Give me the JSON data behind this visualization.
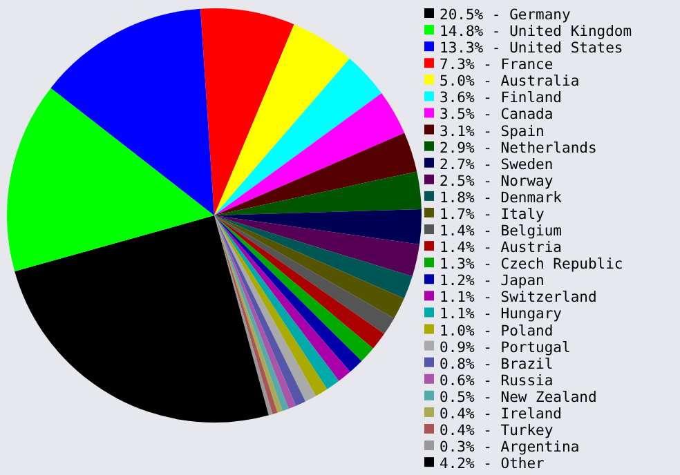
{
  "chart_data": {
    "type": "pie",
    "legend": "right",
    "categories": [
      "Germany",
      "United Kingdom",
      "United States",
      "France",
      "Australia",
      "Finland",
      "Canada",
      "Spain",
      "Netherlands",
      "Sweden",
      "Norway",
      "Denmark",
      "Italy",
      "Belgium",
      "Austria",
      "Czech Republic",
      "Japan",
      "Switzerland",
      "Hungary",
      "Poland",
      "Portugal",
      "Brazil",
      "Russia",
      "New Zealand",
      "Ireland",
      "Turkey",
      "Argentina",
      "Other"
    ],
    "values": [
      20.5,
      14.8,
      13.3,
      7.3,
      5.0,
      3.6,
      3.5,
      3.1,
      2.9,
      2.7,
      2.5,
      1.8,
      1.7,
      1.4,
      1.4,
      1.3,
      1.2,
      1.1,
      1.1,
      1.0,
      0.9,
      0.8,
      0.6,
      0.5,
      0.4,
      0.4,
      0.3,
      4.2
    ],
    "value_labels": [
      "20.5%",
      "14.8%",
      "13.3%",
      "7.3%",
      "5.0%",
      "3.6%",
      "3.5%",
      "3.1%",
      "2.9%",
      "2.7%",
      "2.5%",
      "1.8%",
      "1.7%",
      "1.4%",
      "1.4%",
      "1.3%",
      "1.2%",
      "1.1%",
      "1.1%",
      "1.0%",
      "0.9%",
      "0.8%",
      "0.6%",
      "0.5%",
      "0.4%",
      "0.4%",
      "0.3%",
      "4.2%"
    ],
    "colors": [
      "#000000",
      "#00ff00",
      "#0000ff",
      "#ff0000",
      "#ffff00",
      "#00ffff",
      "#ff00ff",
      "#550000",
      "#005500",
      "#000055",
      "#550055",
      "#005555",
      "#555500",
      "#555555",
      "#aa0000",
      "#00aa00",
      "#0000aa",
      "#aa00aa",
      "#00aaaa",
      "#aaaa00",
      "#aaaaaa",
      "#5555aa",
      "#aa55aa",
      "#55aaaa",
      "#aaaa55",
      "#aa5555",
      "#999999",
      "#000000"
    ]
  }
}
